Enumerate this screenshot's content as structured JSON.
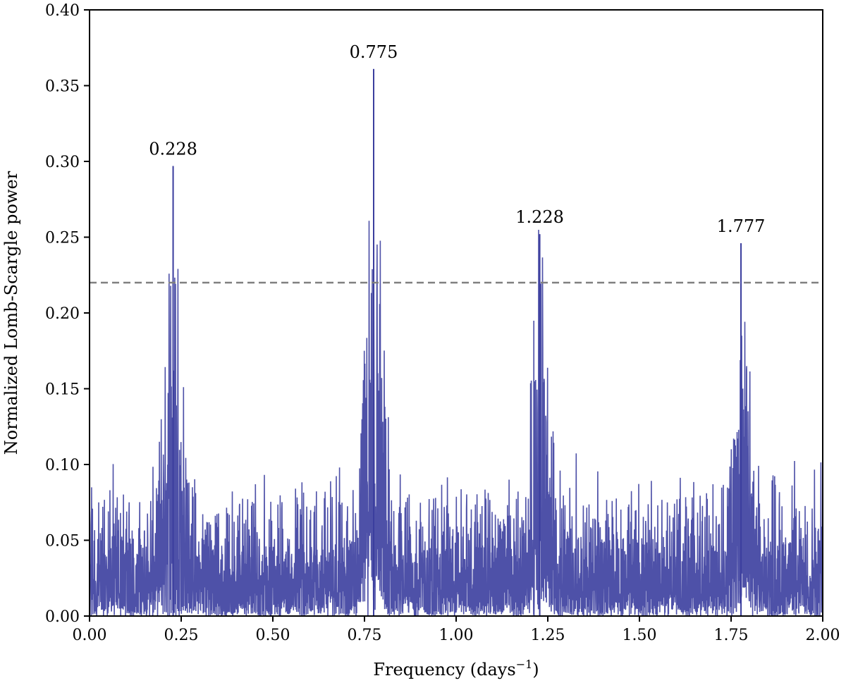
{
  "chart_data": {
    "type": "line",
    "title": "",
    "xlabel": "Frequency (days",
    "xlabel_sup": "−1",
    "xlabel_close": ")",
    "ylabel": "Normalized Lomb-Scargle power",
    "xlim": [
      0.0,
      2.0
    ],
    "ylim": [
      0.0,
      0.4
    ],
    "xticks": [
      "0.00",
      "0.25",
      "0.50",
      "0.75",
      "1.00",
      "1.25",
      "1.50",
      "1.75",
      "2.00"
    ],
    "yticks": [
      "0.00",
      "0.05",
      "0.10",
      "0.15",
      "0.20",
      "0.25",
      "0.30",
      "0.35",
      "0.40"
    ],
    "grid": false,
    "line_color": "#3b3e9e",
    "threshold": {
      "y": 0.22,
      "style": "dashed",
      "color": "#808080"
    },
    "peaks": [
      {
        "label": "0.228",
        "x": 0.228,
        "y": 0.297
      },
      {
        "label": "0.775",
        "x": 0.775,
        "y": 0.361
      },
      {
        "label": "1.228",
        "x": 1.228,
        "y": 0.252
      },
      {
        "label": "1.777",
        "x": 1.777,
        "y": 0.246
      }
    ],
    "noise_level_typical": 0.05
  }
}
